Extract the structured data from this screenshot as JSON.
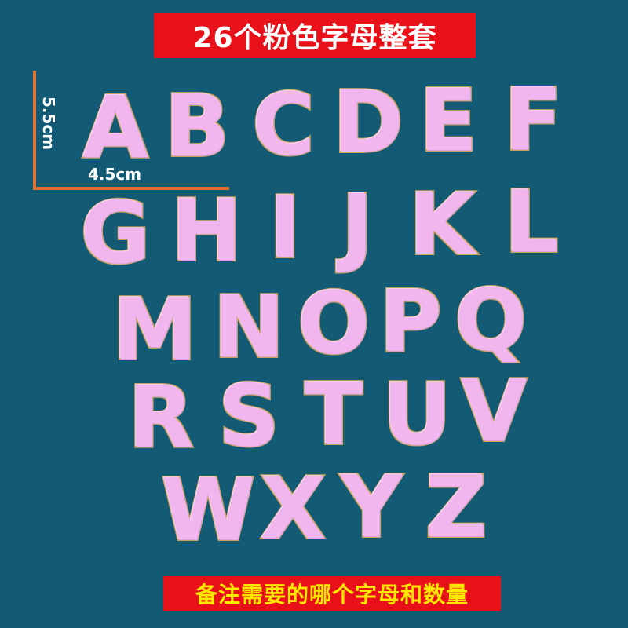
{
  "title": "26个粉色字母整套",
  "footer_note": "备注需要的哪个字母和数量",
  "dimensions": {
    "height_label": "5.5cm",
    "width_label": "4.5cm"
  },
  "letters": [
    "A",
    "B",
    "C",
    "D",
    "E",
    "F",
    "G",
    "H",
    "I",
    "J",
    "K",
    "L",
    "M",
    "N",
    "O",
    "P",
    "Q",
    "R",
    "S",
    "T",
    "U",
    "V",
    "W",
    "X",
    "Y",
    "Z"
  ],
  "colors": {
    "background": "#135a74",
    "banner": "#e8111a",
    "title_text": "#ffffff",
    "footer_text": "#ffe800",
    "letter_fill": "#f2b6ee",
    "letter_border": "#c9a35c",
    "guide_line": "#e2702e"
  }
}
